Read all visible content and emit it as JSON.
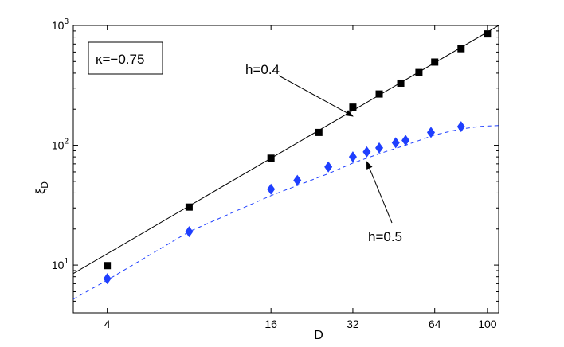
{
  "chart_data": {
    "type": "scatter",
    "xlabel": "D",
    "ylabel": "ξ_D",
    "xscale": "log",
    "yscale": "log",
    "xlim": [
      3,
      110
    ],
    "ylim": [
      4,
      1000
    ],
    "xticks": [
      4,
      16,
      32,
      64,
      100
    ],
    "yticks": [
      {
        "value": 10,
        "base": "10",
        "exp": "1"
      },
      {
        "value": 100,
        "base": "10",
        "exp": "2"
      },
      {
        "value": 1000,
        "base": "10",
        "exp": "3"
      }
    ],
    "grid": false,
    "series": [
      {
        "marker": "square",
        "color": "#000000",
        "x": [
          4,
          8,
          16,
          24,
          32,
          40,
          48,
          56,
          64,
          80,
          100
        ],
        "y": [
          9.9,
          30.5,
          78,
          128,
          208,
          268,
          330,
          405,
          495,
          640,
          850
        ]
      },
      {
        "marker": "diamond",
        "color": "#1f3fff",
        "x": [
          4,
          8,
          16,
          20,
          26,
          32,
          36,
          40,
          46,
          50,
          62,
          80
        ],
        "y": [
          7.7,
          19,
          43,
          51,
          66,
          80,
          88,
          95,
          105,
          110,
          128,
          143
        ]
      }
    ],
    "fits": [
      {
        "style": "solid",
        "color": "#000000",
        "x": [
          3,
          110
        ],
        "y": [
          8.5,
          1000
        ]
      },
      {
        "style": "dashed",
        "color": "#1f3fff",
        "x": [
          3,
          4,
          8,
          16,
          26,
          32,
          40,
          50,
          64,
          80,
          95,
          110
        ],
        "y": [
          5.2,
          7.5,
          19,
          38,
          58,
          71,
          85,
          100,
          122,
          137,
          144,
          146
        ]
      }
    ],
    "annotations": [
      {
        "text": "h=0.4",
        "arrow_to": [
          32,
          175
        ]
      },
      {
        "text": "h=0.5",
        "arrow_to": [
          36,
          73
        ]
      }
    ],
    "legend_box": {
      "text": "κ=−0.75",
      "placement": "top-left"
    }
  }
}
